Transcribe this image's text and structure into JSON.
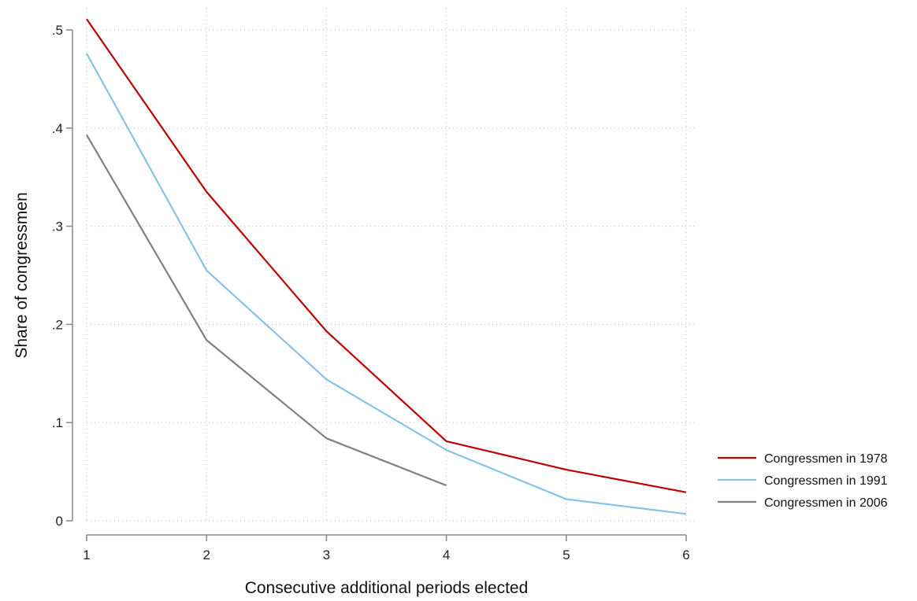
{
  "chart_data": {
    "type": "line",
    "xlabel": "Consecutive additional periods elected",
    "ylabel": "Share of congressmen",
    "xlim": [
      1,
      6
    ],
    "ylim": [
      0,
      0.5
    ],
    "xticks": [
      {
        "value": 1,
        "label": "1"
      },
      {
        "value": 2,
        "label": "2"
      },
      {
        "value": 3,
        "label": "3"
      },
      {
        "value": 4,
        "label": "4"
      },
      {
        "value": 5,
        "label": "5"
      },
      {
        "value": 6,
        "label": "6"
      }
    ],
    "yticks": [
      {
        "value": 0,
        "label": "0"
      },
      {
        "value": 0.1,
        "label": ".1"
      },
      {
        "value": 0.2,
        "label": ".2"
      },
      {
        "value": 0.3,
        "label": ".3"
      },
      {
        "value": 0.4,
        "label": ".4"
      },
      {
        "value": 0.5,
        "label": ".5"
      }
    ],
    "grid": true,
    "legend_position": "right",
    "series": [
      {
        "name": "Congressmen in 1978",
        "color": "#c00000",
        "x": [
          1,
          2,
          3,
          4,
          5,
          6
        ],
        "y": [
          0.511,
          0.335,
          0.193,
          0.081,
          0.052,
          0.029
        ]
      },
      {
        "name": "Congressmen in 1991",
        "color": "#87c3e6",
        "x": [
          1,
          2,
          3,
          4,
          5,
          6
        ],
        "y": [
          0.476,
          0.255,
          0.144,
          0.072,
          0.022,
          0.007
        ]
      },
      {
        "name": "Congressmen in 2006",
        "color": "#808080",
        "x": [
          1,
          2,
          3,
          4
        ],
        "y": [
          0.393,
          0.184,
          0.084,
          0.036
        ]
      }
    ]
  }
}
